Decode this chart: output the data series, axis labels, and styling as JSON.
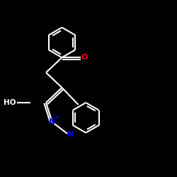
{
  "bg_color": "#000000",
  "bond_color": "#ffffff",
  "bond_width": 1.5,
  "atom_colors": {
    "O": "#ff0000",
    "N": "#0000ee",
    "C": "#ffffff",
    "H": "#ffffff"
  },
  "figsize": [
    2.5,
    2.5
  ],
  "dpi": 100,
  "xlim": [
    0,
    10
  ],
  "ylim": [
    0,
    10
  ]
}
